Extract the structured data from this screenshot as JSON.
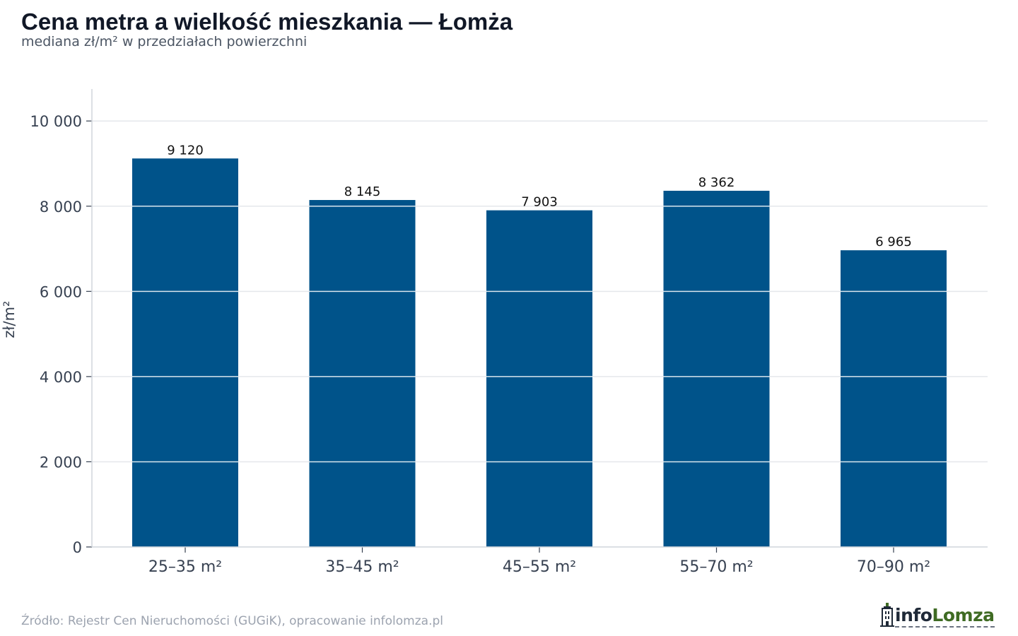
{
  "header": {
    "title": "Cena metra a wielkość mieszkania — Łomża",
    "subtitle": "mediana zł/m² w przedziałach powierzchni"
  },
  "chart_data": {
    "type": "bar",
    "categories": [
      "25–35 m²",
      "35–45 m²",
      "45–55 m²",
      "55–70 m²",
      "70–90 m²"
    ],
    "values": [
      9120,
      8145,
      7903,
      8362,
      6965
    ],
    "value_labels": [
      "9 120",
      "8 145",
      "7 903",
      "8 362",
      "6 965"
    ],
    "ylabel": "zł/m²",
    "xlabel": "",
    "ylim": [
      0,
      10750
    ],
    "yticks": [
      0,
      2000,
      4000,
      6000,
      8000,
      10000
    ],
    "ytick_labels": [
      "0",
      "2 000",
      "4 000",
      "6 000",
      "8 000",
      "10 000"
    ],
    "grid": true,
    "bar_color": "#00538a"
  },
  "footer": {
    "source": "Źródło: Rejestr Cen Nieruchomości (GUGiK), opracowanie infolomza.pl",
    "logo_info": "info",
    "logo_lomza": "Lomza"
  }
}
